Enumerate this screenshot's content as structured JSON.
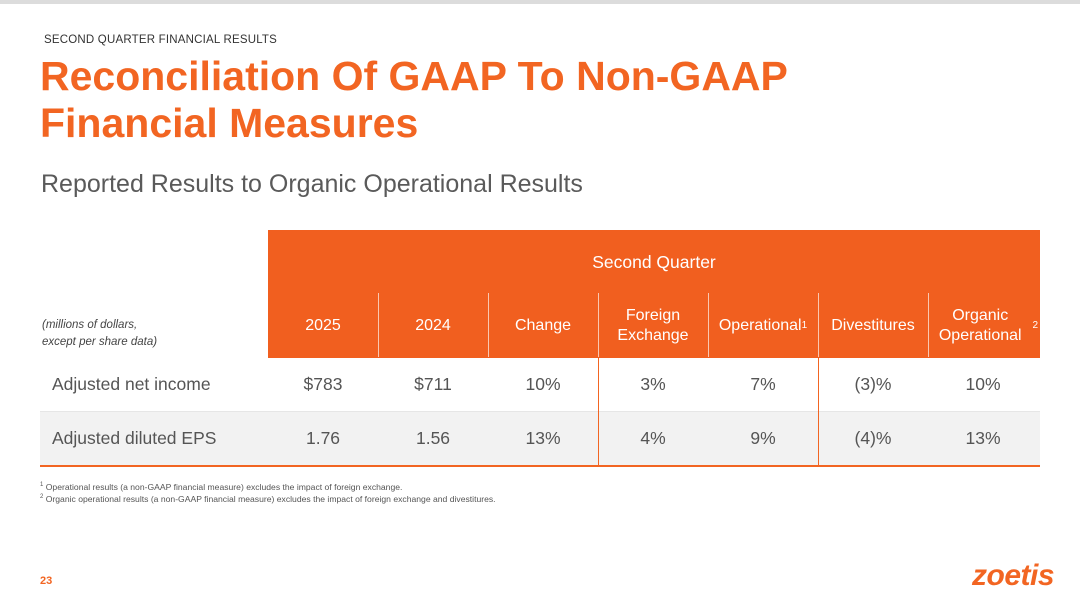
{
  "header": {
    "eyebrow": "SECOND QUARTER FINANCIAL RESULTS",
    "title_line1": "Reconciliation Of GAAP To Non-GAAP",
    "title_line2": "Financial Measures",
    "subtitle": "Reported Results to Organic Operational Results"
  },
  "table": {
    "group_header": "Second Quarter",
    "units_line1": "(millions of dollars,",
    "units_line2": "except per share data)",
    "columns": [
      {
        "label": "2025",
        "sup": ""
      },
      {
        "label": "2024",
        "sup": ""
      },
      {
        "label": "Change",
        "sup": ""
      },
      {
        "label": "Foreign Exchange",
        "sup": ""
      },
      {
        "label": "Operational",
        "sup": "1"
      },
      {
        "label": "Divestitures",
        "sup": ""
      },
      {
        "label": "Organic Operational",
        "sup": "2"
      }
    ],
    "rows": [
      {
        "label": "Adjusted net income",
        "values": [
          "$783",
          "$711",
          "10%",
          "3%",
          "7%",
          "(3)%",
          "10%"
        ]
      },
      {
        "label": "Adjusted diluted EPS",
        "values": [
          "1.76",
          "1.56",
          "13%",
          "4%",
          "9%",
          "(4)%",
          "13%"
        ]
      }
    ]
  },
  "footnotes": [
    {
      "mark": "1",
      "text": "Operational results (a non-GAAP financial measure) excludes the impact of foreign exchange."
    },
    {
      "mark": "2",
      "text": "Organic operational results (a non-GAAP financial measure) excludes the impact of foreign exchange and divestitures."
    }
  ],
  "footer": {
    "page_number": "23",
    "logo_text": "zoetis"
  },
  "colors": {
    "accent": "#f26522",
    "header_band": "#f15f1f",
    "zebra": "#f2f2f2"
  }
}
